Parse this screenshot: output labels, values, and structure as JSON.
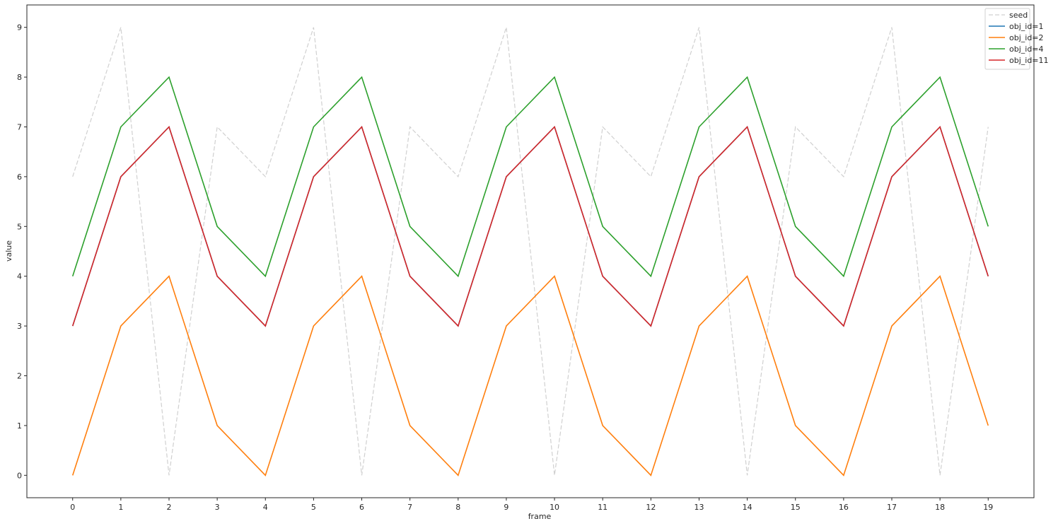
{
  "chart_data": {
    "type": "line",
    "xlabel": "frame",
    "ylabel": "value",
    "xlim": [
      -0.95,
      19.95
    ],
    "ylim": [
      -0.45,
      9.45
    ],
    "xticks": [
      0,
      1,
      2,
      3,
      4,
      5,
      6,
      7,
      8,
      9,
      10,
      11,
      12,
      13,
      14,
      15,
      16,
      17,
      18,
      19
    ],
    "yticks": [
      0,
      1,
      2,
      3,
      4,
      5,
      6,
      7,
      8,
      9
    ],
    "grid": false,
    "legend_position": "top-right",
    "x": [
      0,
      1,
      2,
      3,
      4,
      5,
      6,
      7,
      8,
      9,
      10,
      11,
      12,
      13,
      14,
      15,
      16,
      17,
      18,
      19
    ],
    "series": [
      {
        "name": "seed",
        "color": "#d0d0d0",
        "style": "dashed",
        "values": [
          6,
          9,
          0,
          7,
          6,
          9,
          0,
          7,
          6,
          9,
          0,
          7,
          6,
          9,
          0,
          7,
          6,
          9,
          0,
          7
        ]
      },
      {
        "name": "obj_id=1",
        "color": "#1f77b4",
        "style": "solid",
        "values": [
          3,
          6,
          7,
          4,
          3,
          6,
          7,
          4,
          3,
          6,
          7,
          4,
          3,
          6,
          7,
          4,
          3,
          6,
          7,
          4
        ]
      },
      {
        "name": "obj_id=2",
        "color": "#ff7f0e",
        "style": "solid",
        "values": [
          0,
          3,
          4,
          1,
          0,
          3,
          4,
          1,
          0,
          3,
          4,
          1,
          0,
          3,
          4,
          1,
          0,
          3,
          4,
          1
        ]
      },
      {
        "name": "obj_id=4",
        "color": "#2ca02c",
        "style": "solid",
        "values": [
          4,
          7,
          8,
          5,
          4,
          7,
          8,
          5,
          4,
          7,
          8,
          5,
          4,
          7,
          8,
          5,
          4,
          7,
          8,
          5
        ]
      },
      {
        "name": "obj_id=11",
        "color": "#d62728",
        "style": "solid",
        "values": [
          3,
          6,
          7,
          4,
          3,
          6,
          7,
          4,
          3,
          6,
          7,
          4,
          3,
          6,
          7,
          4,
          3,
          6,
          7,
          4
        ]
      }
    ]
  }
}
